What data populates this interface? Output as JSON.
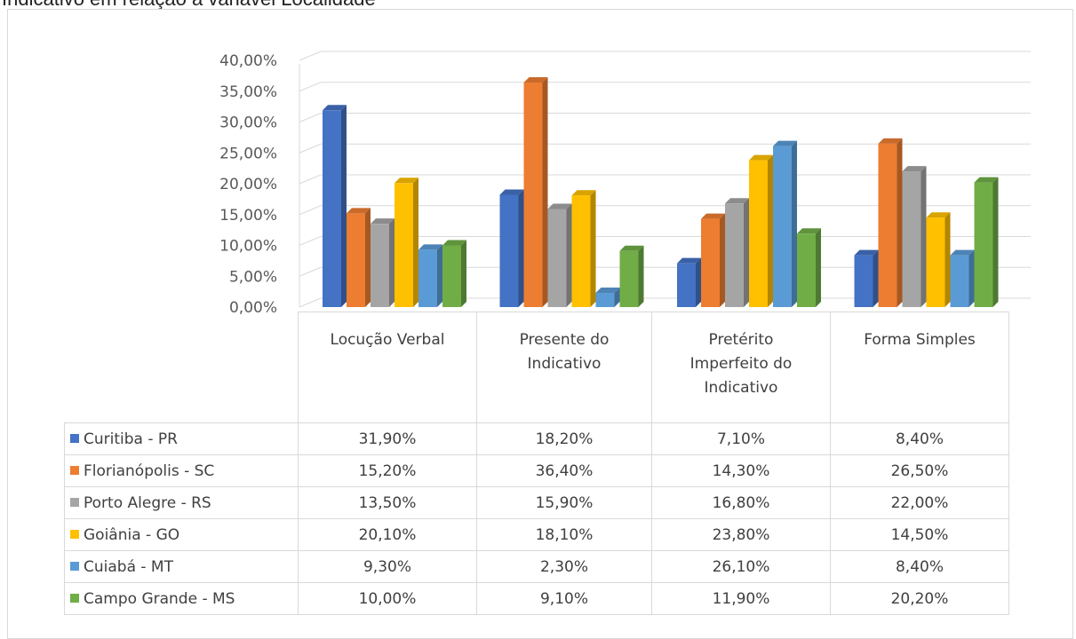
{
  "title": "Indicativo em relação à variável Localidade",
  "colors": {
    "Curitiba - PR": "#4472c4",
    "Florianópolis - SC": "#ed7d31",
    "Porto Alegre - RS": "#a5a5a5",
    "Goiânia - GO": "#ffc000",
    "Cuiabá - MT": "#5b9bd5",
    "Campo Grande - MS": "#70ad47"
  },
  "chart_data": {
    "type": "bar",
    "style": "3d-clustered-column with data table",
    "categories": [
      "Locução Verbal",
      "Presente do Indicativo",
      "Pretérito Imperfeito do Indicativo",
      "Forma Simples"
    ],
    "category_lines": [
      [
        "Locução Verbal"
      ],
      [
        "Presente do",
        "Indicativo"
      ],
      [
        "Pretérito",
        "Imperfeito do",
        "Indicativo"
      ],
      [
        "Forma Simples"
      ]
    ],
    "series": [
      {
        "name": "Curitiba - PR",
        "values": [
          31.9,
          18.2,
          7.1,
          8.4
        ],
        "labels": [
          "31,90%",
          "18,20%",
          "7,10%",
          "8,40%"
        ]
      },
      {
        "name": "Florianópolis - SC",
        "values": [
          15.2,
          36.4,
          14.3,
          26.5
        ],
        "labels": [
          "15,20%",
          "36,40%",
          "14,30%",
          "26,50%"
        ]
      },
      {
        "name": "Porto Alegre - RS",
        "values": [
          13.5,
          15.9,
          16.8,
          22.0
        ],
        "labels": [
          "13,50%",
          "15,90%",
          "16,80%",
          "22,00%"
        ]
      },
      {
        "name": "Goiânia - GO",
        "values": [
          20.1,
          18.1,
          23.8,
          14.5
        ],
        "labels": [
          "20,10%",
          "18,10%",
          "23,80%",
          "14,50%"
        ]
      },
      {
        "name": "Cuiabá - MT",
        "values": [
          9.3,
          2.3,
          26.1,
          8.4
        ],
        "labels": [
          "9,30%",
          "2,30%",
          "26,10%",
          "8,40%"
        ]
      },
      {
        "name": "Campo Grande - MS",
        "values": [
          10.0,
          9.1,
          11.9,
          20.2
        ],
        "labels": [
          "10,00%",
          "9,10%",
          "11,90%",
          "20,20%"
        ]
      }
    ],
    "ylim": [
      0,
      40
    ],
    "yticks": [
      "0,00%",
      "5,00%",
      "10,00%",
      "15,00%",
      "20,00%",
      "25,00%",
      "30,00%",
      "35,00%",
      "40,00%"
    ],
    "grid": true,
    "legend": "data table"
  }
}
